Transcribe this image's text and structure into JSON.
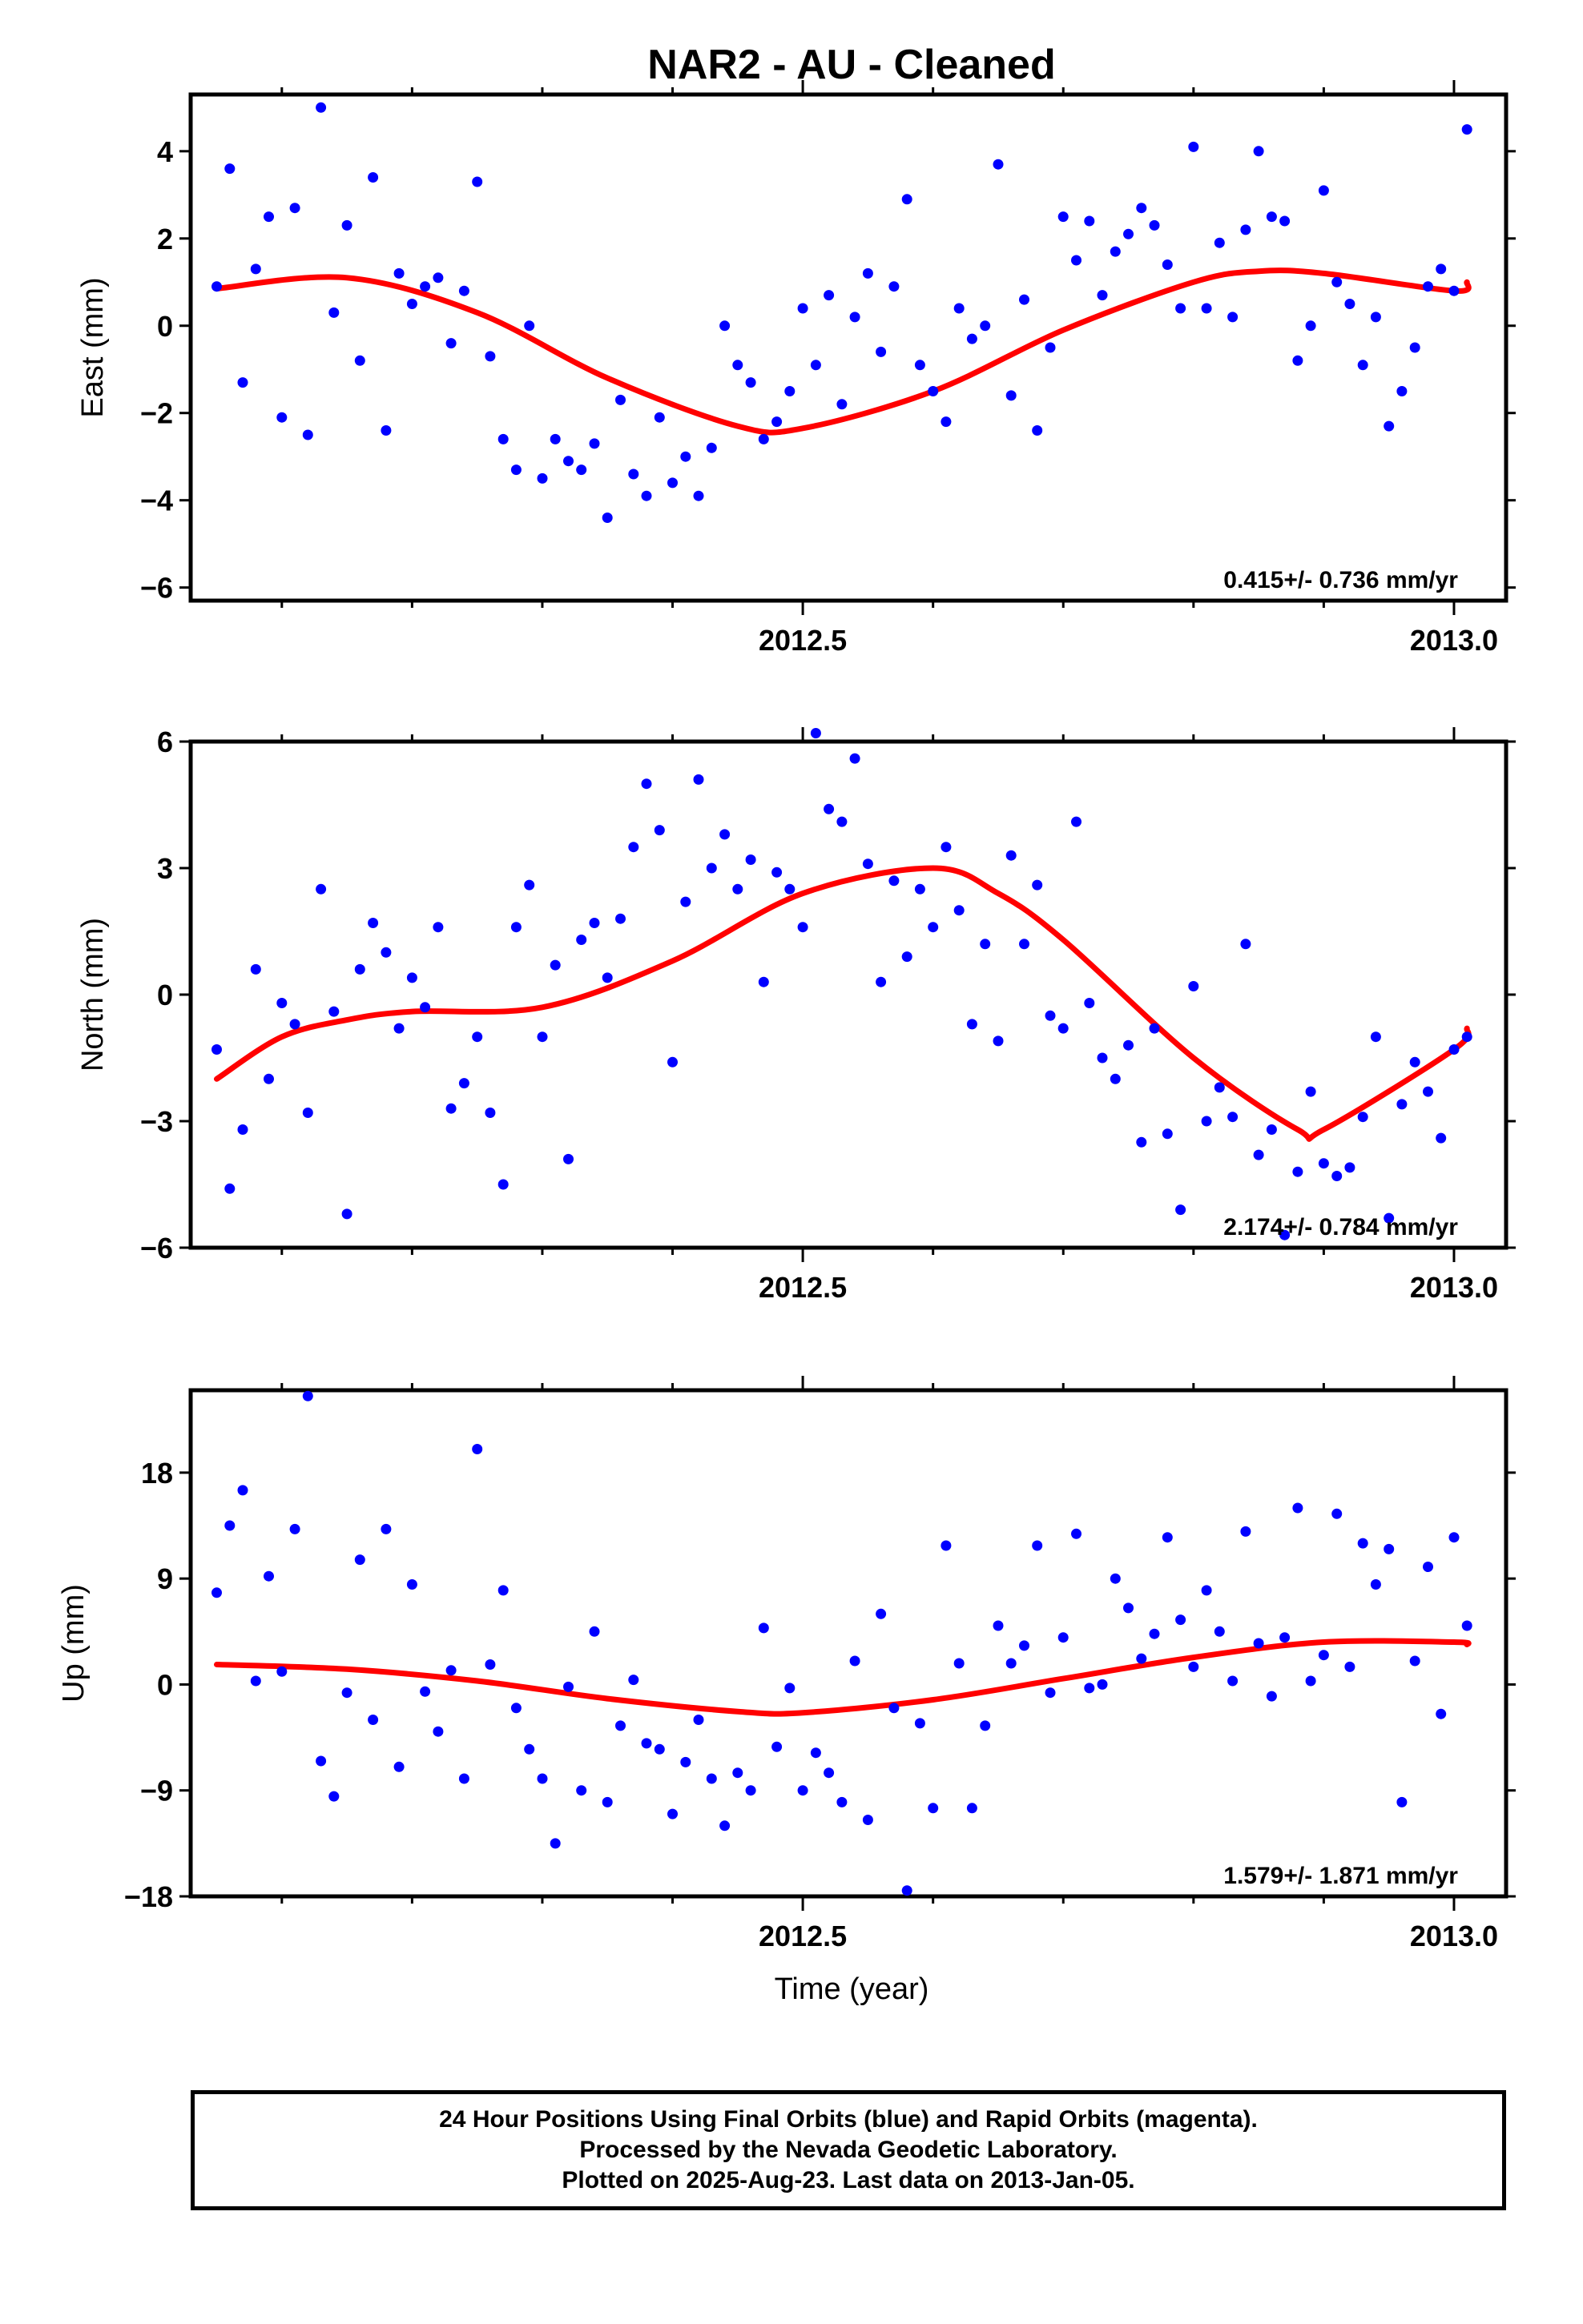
{
  "title": "NAR2  - AU - Cleaned",
  "xlabel": "Time (year)",
  "footer": {
    "line1": "24 Hour Positions Using Final Orbits (blue) and Rapid Orbits (magenta).",
    "line2": "Processed by the Nevada Geodetic Laboratory.",
    "line3": "Plotted on 2025-Aug-23. Last data on 2013-Jan-05."
  },
  "colors": {
    "points": "#0000ff",
    "fit": "#ff0000",
    "axis": "#000000"
  },
  "chart_data": [
    {
      "type": "scatter",
      "ylabel": "East (mm)",
      "rate_label": "0.415+/- 0.736 mm/yr",
      "xlim": [
        2012.03,
        2013.04
      ],
      "ylim": [
        -6.3,
        5.3
      ],
      "x_ticks": [
        2012.5,
        2013.0
      ],
      "x_tick_labels": [
        "2012.5",
        "2013.0"
      ],
      "x_minor_ticks": [
        2012.1,
        2012.2,
        2012.3,
        2012.4,
        2012.6,
        2012.7,
        2012.8,
        2012.9
      ],
      "y_ticks": [
        -6,
        -4,
        -2,
        0,
        2,
        4
      ],
      "y_tick_labels": [
        "−6",
        "−4",
        "−2",
        "0",
        "2",
        "4"
      ],
      "fit": {
        "x": [
          2012.05,
          2012.15,
          2012.25,
          2012.35,
          2012.45,
          2012.5,
          2012.6,
          2012.7,
          2012.8,
          2012.85,
          2012.9,
          2013.0,
          2013.01
        ],
        "y": [
          0.85,
          1.1,
          0.3,
          -1.2,
          -2.3,
          -2.35,
          -1.5,
          -0.1,
          1.0,
          1.25,
          1.2,
          0.8,
          1.0
        ]
      },
      "points": {
        "x": [
          2012.05,
          2012.06,
          2012.07,
          2012.08,
          2012.09,
          2012.1,
          2012.11,
          2012.12,
          2012.13,
          2012.14,
          2012.15,
          2012.16,
          2012.17,
          2012.18,
          2012.19,
          2012.2,
          2012.21,
          2012.22,
          2012.23,
          2012.24,
          2012.25,
          2012.26,
          2012.27,
          2012.28,
          2012.29,
          2012.3,
          2012.31,
          2012.32,
          2012.33,
          2012.34,
          2012.35,
          2012.36,
          2012.37,
          2012.38,
          2012.39,
          2012.4,
          2012.41,
          2012.42,
          2012.43,
          2012.44,
          2012.45,
          2012.46,
          2012.47,
          2012.48,
          2012.49,
          2012.5,
          2012.51,
          2012.52,
          2012.53,
          2012.54,
          2012.55,
          2012.56,
          2012.57,
          2012.58,
          2012.59,
          2012.6,
          2012.61,
          2012.62,
          2012.63,
          2012.64,
          2012.65,
          2012.66,
          2012.67,
          2012.68,
          2012.69,
          2012.7,
          2012.71,
          2012.72,
          2012.73,
          2012.74,
          2012.75,
          2012.76,
          2012.77,
          2012.78,
          2012.79,
          2012.8,
          2012.81,
          2012.82,
          2012.83,
          2012.84,
          2012.85,
          2012.86,
          2012.87,
          2012.88,
          2012.89,
          2012.9,
          2012.91,
          2012.92,
          2012.93,
          2012.94,
          2012.95,
          2012.96,
          2012.97,
          2012.98,
          2012.99,
          2013.0,
          2013.01
        ],
        "y": [
          0.9,
          3.6,
          -1.3,
          1.3,
          2.5,
          -2.1,
          2.7,
          -2.5,
          5.0,
          0.3,
          2.3,
          -0.8,
          3.4,
          -2.4,
          1.2,
          0.5,
          0.9,
          1.1,
          -0.4,
          0.8,
          3.3,
          -0.7,
          -2.6,
          -3.3,
          0.0,
          -3.5,
          -2.6,
          -3.1,
          -3.3,
          -2.7,
          -4.4,
          -1.7,
          -3.4,
          -3.9,
          -2.1,
          -3.6,
          -3.0,
          -3.9,
          -2.8,
          0.0,
          -0.9,
          -1.3,
          -2.6,
          -2.2,
          -1.5,
          0.4,
          -0.9,
          0.7,
          -1.8,
          0.2,
          1.2,
          -0.6,
          0.9,
          2.9,
          -0.9,
          -1.5,
          -2.2,
          0.4,
          -0.3,
          0.0,
          3.7,
          -1.6,
          0.6,
          -2.4,
          -0.5,
          2.5,
          1.5,
          2.4,
          0.7,
          1.7,
          2.1,
          2.7,
          2.3,
          1.4,
          0.4,
          4.1,
          0.4,
          1.9,
          0.2,
          2.2,
          4.0,
          2.5,
          2.4,
          -0.8,
          0.0,
          3.1,
          1.0,
          0.5,
          -0.9,
          0.2,
          -2.3,
          -1.5,
          -0.5,
          0.9,
          1.3,
          0.8,
          4.5
        ]
      }
    },
    {
      "type": "scatter",
      "ylabel": "North (mm)",
      "rate_label": "2.174+/- 0.784 mm/yr",
      "xlim": [
        2012.03,
        2013.04
      ],
      "ylim": [
        -6.0,
        6.0
      ],
      "x_ticks": [
        2012.5,
        2013.0
      ],
      "x_tick_labels": [
        "2012.5",
        "2013.0"
      ],
      "x_minor_ticks": [
        2012.1,
        2012.2,
        2012.3,
        2012.4,
        2012.6,
        2012.7,
        2012.8,
        2012.9
      ],
      "y_ticks": [
        -6,
        -3,
        0,
        3,
        6
      ],
      "y_tick_labels": [
        "−6",
        "−3",
        "0",
        "3",
        "6"
      ],
      "fit": {
        "x": [
          2012.05,
          2012.1,
          2012.15,
          2012.2,
          2012.3,
          2012.4,
          2012.5,
          2012.6,
          2012.65,
          2012.7,
          2012.8,
          2012.88,
          2012.9,
          2013.0,
          2013.01
        ],
        "y": [
          -2.0,
          -1.0,
          -0.6,
          -0.4,
          -0.3,
          0.8,
          2.4,
          3.0,
          2.4,
          1.3,
          -1.5,
          -3.2,
          -3.2,
          -1.3,
          -0.8
        ]
      },
      "points": {
        "x": [
          2012.05,
          2012.06,
          2012.07,
          2012.08,
          2012.09,
          2012.1,
          2012.11,
          2012.12,
          2012.13,
          2012.14,
          2012.15,
          2012.16,
          2012.17,
          2012.18,
          2012.19,
          2012.2,
          2012.21,
          2012.22,
          2012.23,
          2012.24,
          2012.25,
          2012.26,
          2012.27,
          2012.28,
          2012.29,
          2012.3,
          2012.31,
          2012.32,
          2012.33,
          2012.34,
          2012.35,
          2012.36,
          2012.37,
          2012.38,
          2012.39,
          2012.4,
          2012.41,
          2012.42,
          2012.43,
          2012.44,
          2012.45,
          2012.46,
          2012.47,
          2012.48,
          2012.49,
          2012.5,
          2012.51,
          2012.52,
          2012.53,
          2012.54,
          2012.55,
          2012.56,
          2012.57,
          2012.58,
          2012.59,
          2012.6,
          2012.61,
          2012.62,
          2012.63,
          2012.64,
          2012.65,
          2012.66,
          2012.67,
          2012.68,
          2012.69,
          2012.7,
          2012.71,
          2012.72,
          2012.73,
          2012.74,
          2012.75,
          2012.76,
          2012.77,
          2012.78,
          2012.79,
          2012.8,
          2012.81,
          2012.82,
          2012.83,
          2012.84,
          2012.85,
          2012.86,
          2012.87,
          2012.88,
          2012.89,
          2012.9,
          2012.91,
          2012.92,
          2012.93,
          2012.94,
          2012.95,
          2012.96,
          2012.97,
          2012.98,
          2012.99,
          2013.0,
          2013.01
        ],
        "y": [
          -1.3,
          -4.6,
          -3.2,
          0.6,
          -2.0,
          -0.2,
          -0.7,
          -2.8,
          2.5,
          -0.4,
          -5.2,
          0.6,
          1.7,
          1.0,
          -0.8,
          0.4,
          -0.3,
          1.6,
          -2.7,
          -2.1,
          -1.0,
          -2.8,
          -4.5,
          1.6,
          2.6,
          -1.0,
          0.7,
          -3.9,
          1.3,
          1.7,
          0.4,
          1.8,
          3.5,
          5.0,
          3.9,
          -1.6,
          2.2,
          5.1,
          3.0,
          3.8,
          2.5,
          3.2,
          0.3,
          2.9,
          2.5,
          1.6,
          6.2,
          4.4,
          4.1,
          5.6,
          3.1,
          0.3,
          2.7,
          0.9,
          2.5,
          1.6,
          3.5,
          2.0,
          -0.7,
          1.2,
          -1.1,
          3.3,
          1.2,
          2.6,
          -0.5,
          -0.8,
          4.1,
          -0.2,
          -1.5,
          -2.0,
          -1.2,
          -3.5,
          -0.8,
          -3.3,
          -5.1,
          0.2,
          -3.0,
          -2.2,
          -2.9,
          1.2,
          -3.8,
          -3.2,
          -5.7,
          -4.2,
          -2.3,
          -4.0,
          -4.3,
          -4.1,
          -2.9,
          -1.0,
          -5.3,
          -2.6,
          -1.6,
          -2.3,
          -3.4,
          -1.3,
          -1.0
        ]
      }
    },
    {
      "type": "scatter",
      "ylabel": "Up (mm)",
      "rate_label": "1.579+/- 1.871 mm/yr",
      "xlim": [
        2012.03,
        2013.04
      ],
      "ylim": [
        -18.0,
        25.0
      ],
      "x_ticks": [
        2012.5,
        2013.0
      ],
      "x_tick_labels": [
        "2012.5",
        "2013.0"
      ],
      "x_minor_ticks": [
        2012.1,
        2012.2,
        2012.3,
        2012.4,
        2012.6,
        2012.7,
        2012.8,
        2012.9
      ],
      "y_ticks": [
        -18,
        -9,
        0,
        9,
        18
      ],
      "y_tick_labels": [
        "−18",
        "−9",
        "0",
        "9",
        "18"
      ],
      "fit": {
        "x": [
          2012.05,
          2012.15,
          2012.25,
          2012.35,
          2012.45,
          2012.5,
          2012.6,
          2012.7,
          2012.8,
          2012.9,
          2013.0,
          2013.01
        ],
        "y": [
          1.7,
          1.3,
          0.3,
          -1.2,
          -2.3,
          -2.4,
          -1.3,
          0.5,
          2.3,
          3.6,
          3.6,
          3.4
        ]
      },
      "points": {
        "x": [
          2012.05,
          2012.06,
          2012.07,
          2012.08,
          2012.09,
          2012.1,
          2012.11,
          2012.12,
          2012.13,
          2012.14,
          2012.15,
          2012.16,
          2012.17,
          2012.18,
          2012.19,
          2012.2,
          2012.21,
          2012.22,
          2012.23,
          2012.24,
          2012.25,
          2012.26,
          2012.27,
          2012.28,
          2012.29,
          2012.3,
          2012.31,
          2012.32,
          2012.33,
          2012.34,
          2012.35,
          2012.36,
          2012.37,
          2012.38,
          2012.39,
          2012.4,
          2012.41,
          2012.42,
          2012.43,
          2012.44,
          2012.45,
          2012.46,
          2012.47,
          2012.48,
          2012.49,
          2012.5,
          2012.51,
          2012.52,
          2012.53,
          2012.54,
          2012.55,
          2012.56,
          2012.57,
          2012.58,
          2012.59,
          2012.6,
          2012.61,
          2012.62,
          2012.63,
          2012.64,
          2012.65,
          2012.66,
          2012.67,
          2012.68,
          2012.69,
          2012.7,
          2012.71,
          2012.72,
          2012.73,
          2012.74,
          2012.75,
          2012.76,
          2012.77,
          2012.78,
          2012.79,
          2012.8,
          2012.81,
          2012.82,
          2012.83,
          2012.84,
          2012.85,
          2012.86,
          2012.87,
          2012.88,
          2012.89,
          2012.9,
          2012.91,
          2012.92,
          2012.93,
          2012.94,
          2012.95,
          2012.96,
          2012.97,
          2012.98,
          2012.99,
          2013.0,
          2013.01
        ],
        "y": [
          7.8,
          13.5,
          16.5,
          0.3,
          9.2,
          1.1,
          13.2,
          24.5,
          -6.5,
          -9.5,
          -0.7,
          10.6,
          -3.0,
          13.2,
          -7.0,
          8.5,
          -0.6,
          -4.0,
          1.2,
          -8.0,
          20.0,
          1.7,
          8.0,
          -2.0,
          -5.5,
          -8.0,
          -13.5,
          -0.2,
          -9.0,
          4.5,
          -10.0,
          -3.5,
          0.4,
          -5.0,
          -5.5,
          -11.0,
          -6.6,
          -3.0,
          -8.0,
          -12.0,
          -7.5,
          -9.0,
          4.8,
          -5.3,
          -0.3,
          -9.0,
          -5.8,
          -7.5,
          -10.0,
          2.0,
          -11.5,
          6.0,
          -2.0,
          -17.5,
          -3.3,
          -10.5,
          11.8,
          1.8,
          -10.5,
          -3.5,
          5.0,
          1.8,
          3.3,
          11.8,
          -0.7,
          4.0,
          12.8,
          -0.3,
          0.0,
          9.0,
          6.5,
          2.2,
          4.3,
          12.5,
          5.5,
          1.5,
          8.0,
          4.5,
          0.3,
          13.0,
          3.5,
          -1.0,
          4.0,
          15.0,
          0.3,
          2.5,
          14.5,
          1.5,
          12.0,
          8.5,
          11.5,
          -10.0,
          2.0,
          10.0,
          -2.5,
          12.5,
          5.0
        ]
      }
    }
  ]
}
